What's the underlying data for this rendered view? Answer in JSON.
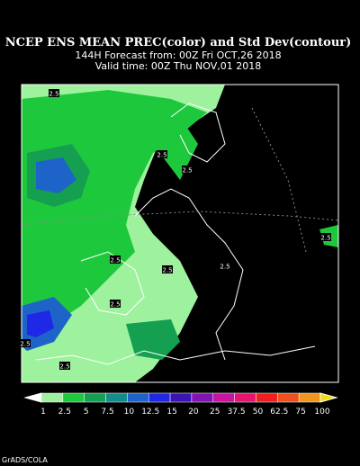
{
  "header": {
    "title": "NCEP ENS MEAN PREC(color) and Std Dev(contour)",
    "forecast": "144H Forecast from: 00Z Fri OCT,26 2018",
    "valid": "Valid time: 00Z Thu NOV,01 2018"
  },
  "map": {
    "contour_labels": [
      "2.5",
      "2.5",
      "2.5",
      "2.5",
      "2.5",
      "2.5",
      "2.5",
      "2.5",
      "2.5",
      "2.5"
    ]
  },
  "colorbar": {
    "labels": [
      "1",
      "2.5",
      "5",
      "7.5",
      "10",
      "12.5",
      "15",
      "20",
      "25",
      "37.5",
      "50",
      "62.5",
      "75",
      "100"
    ],
    "colors": [
      "#ffffff",
      "#9ef29e",
      "#1ec83c",
      "#14a050",
      "#148c8c",
      "#1e64c8",
      "#1e28e6",
      "#3c14b4",
      "#8214b4",
      "#c814a0",
      "#e6146e",
      "#f01e1e",
      "#f0501e",
      "#f0961e",
      "#f0dc14"
    ]
  },
  "footer": {
    "credit": "GrADS/COLA"
  }
}
